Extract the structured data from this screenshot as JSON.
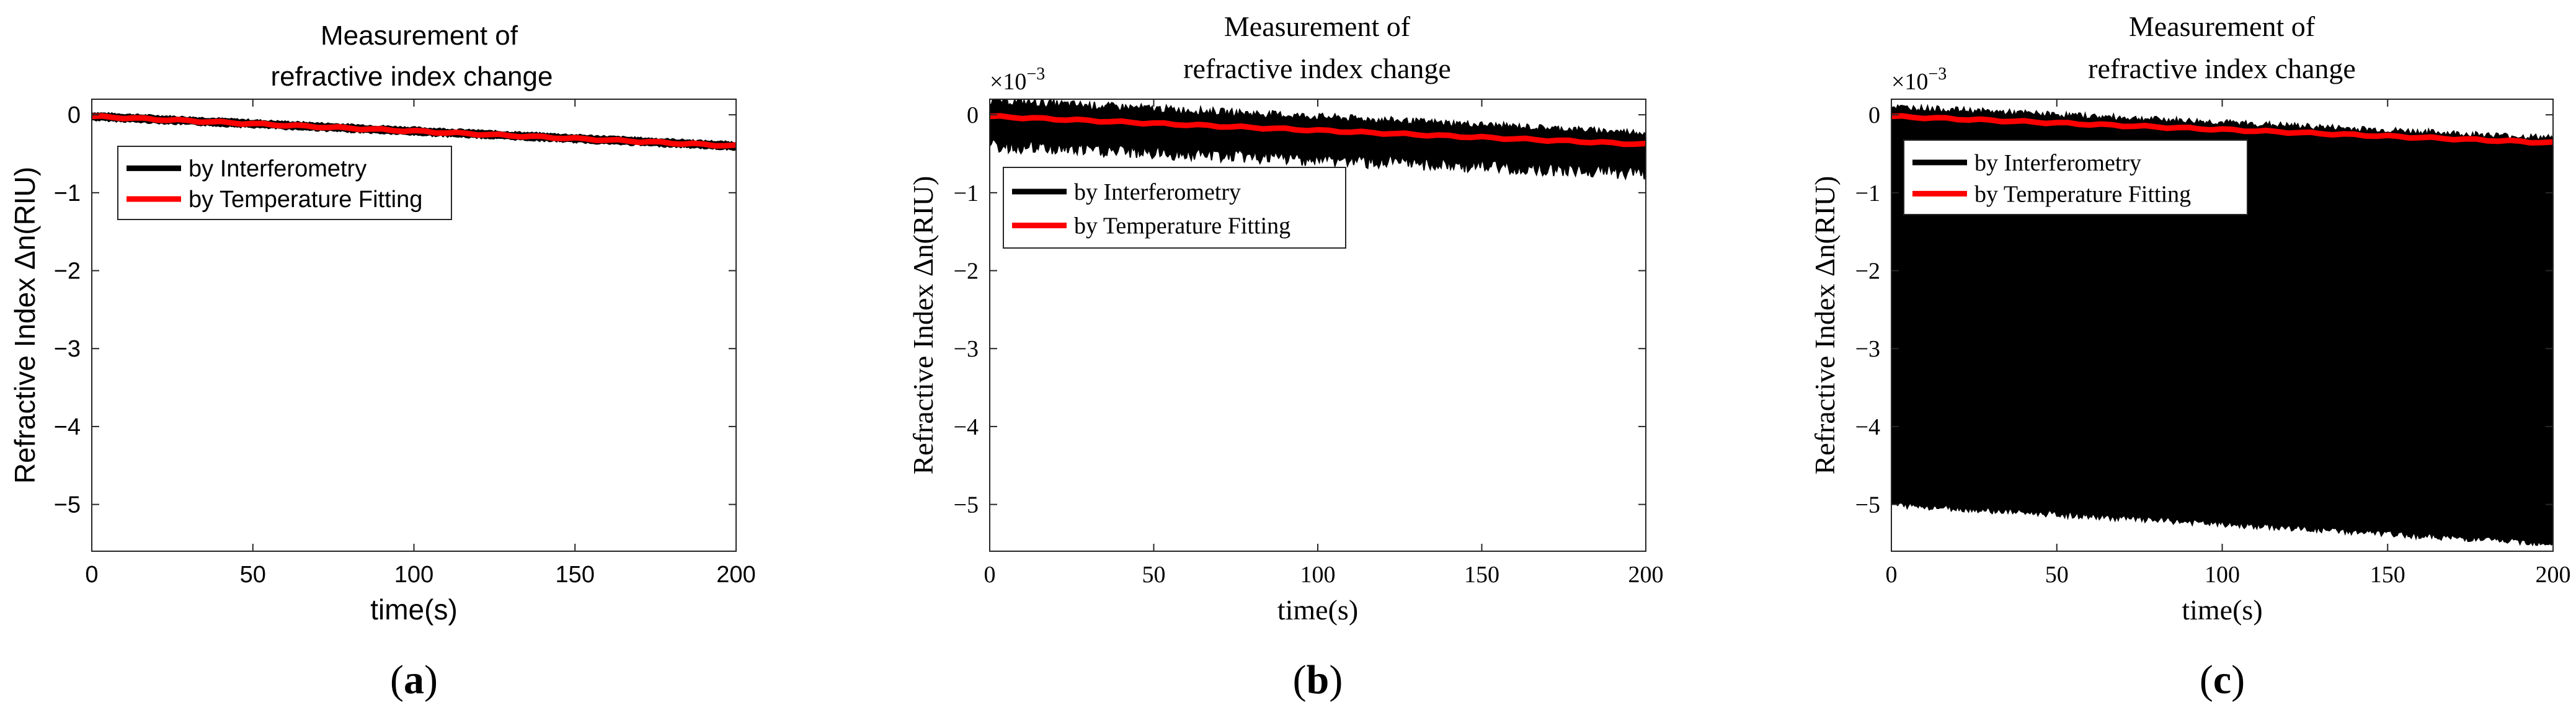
{
  "chart_data": [
    {
      "type": "line",
      "panel_label": "a",
      "title": [
        "Measurement",
        "of",
        "refractive index change"
      ],
      "xlabel": "time(s)",
      "ylabel": "Refractive Index Δn(RIU)",
      "exponent_label": "",
      "xlim": [
        0,
        200
      ],
      "ylim": [
        -5.6,
        0.2
      ],
      "xticks": [
        "0",
        "50",
        "100",
        "150",
        "200"
      ],
      "yticks": [
        "0",
        "−1",
        "−2",
        "−3",
        "−4",
        "−5"
      ],
      "legend": [
        "by Interferometry",
        "by Temperature Fitting"
      ],
      "legend_location": "upper-left",
      "series": [
        {
          "name": "by Interferometry",
          "color": "#000000",
          "style": "noisy-band",
          "x": [
            0,
            200
          ],
          "center": [
            -0.02,
            -0.4
          ],
          "noise_top": [
            0.05,
            0.05
          ],
          "noise_bottom": [
            0.05,
            0.05
          ]
        },
        {
          "name": "by Temperature Fitting",
          "color": "#ff0000",
          "style": "line",
          "x": [
            0,
            200
          ],
          "y": [
            -0.02,
            -0.4
          ]
        }
      ]
    },
    {
      "type": "line",
      "panel_label": "b",
      "title": [
        "Measurement of",
        "refractive index change"
      ],
      "xlabel": "time(s)",
      "ylabel": "Refractive Index Δn(RIU)",
      "exponent_label": "×10",
      "exponent_power": "−3",
      "xlim": [
        0,
        200
      ],
      "ylim": [
        -5.6,
        0.2
      ],
      "xticks": [
        "0",
        "50",
        "100",
        "150",
        "200"
      ],
      "yticks": [
        "0",
        "−1",
        "−2",
        "−3",
        "−4",
        "−5"
      ],
      "legend": [
        "by Interferometry",
        "by Temperature Fitting"
      ],
      "legend_location": "upper-left",
      "series": [
        {
          "name": "by Interferometry",
          "color": "#000000",
          "style": "noisy-band",
          "x": [
            0,
            200
          ],
          "center": [
            -0.05,
            -0.4
          ],
          "noise_top": [
            0.25,
            0.18
          ],
          "noise_bottom": [
            0.38,
            0.38
          ]
        },
        {
          "name": "by Temperature Fitting",
          "color": "#ff0000",
          "style": "line",
          "x": [
            0,
            200
          ],
          "y": [
            -0.02,
            -0.38
          ]
        }
      ]
    },
    {
      "type": "line",
      "panel_label": "c",
      "title": [
        "Measurement of",
        "refractive index change"
      ],
      "xlabel": "time(s)",
      "ylabel": "Refractive Index Δn(RIU)",
      "exponent_label": "×10",
      "exponent_power": "−3",
      "xlim": [
        0,
        200
      ],
      "ylim": [
        -5.6,
        0.2
      ],
      "xticks": [
        "0",
        "50",
        "100",
        "150",
        "200"
      ],
      "yticks": [
        "0",
        "−1",
        "−2",
        "−3",
        "−4",
        "−5"
      ],
      "legend": [
        "by Interferometry",
        "by Temperature Fitting"
      ],
      "legend_location": "upper-left",
      "series": [
        {
          "name": "by Interferometry",
          "color": "#000000",
          "style": "noisy-band",
          "x": [
            0,
            200
          ],
          "top": [
            0.1,
            -0.3
          ],
          "bottom": [
            -5.0,
            -5.5
          ]
        },
        {
          "name": "by Temperature Fitting",
          "color": "#ff0000",
          "style": "line",
          "x": [
            0,
            200
          ],
          "y": [
            -0.02,
            -0.36
          ]
        }
      ]
    }
  ]
}
